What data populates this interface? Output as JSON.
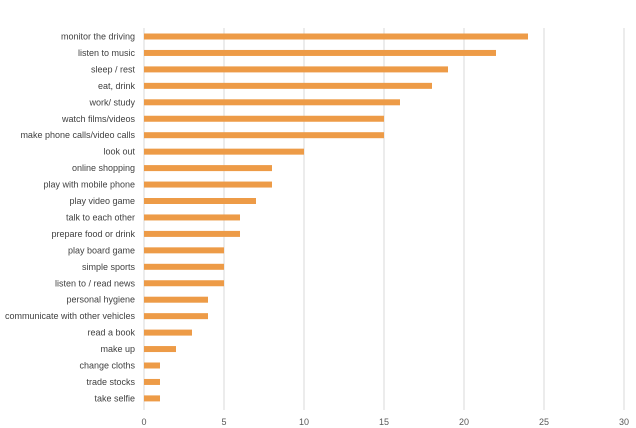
{
  "chart_data": {
    "type": "bar",
    "orientation": "horizontal",
    "title": "",
    "xlabel": "",
    "ylabel": "",
    "categories": [
      "monitor the driving",
      "listen to music",
      "sleep / rest",
      "eat, drink",
      "work/ study",
      "watch films/videos",
      "make phone calls/video calls",
      "look out",
      "online shopping",
      "play with mobile phone",
      "play video game",
      "talk to each other",
      "prepare food or drink",
      "play board game",
      "simple sports",
      "listen to / read news",
      "personal hygiene",
      "communicate with other vehicles",
      "read a book",
      "make up",
      "change cloths",
      "trade stocks",
      "take selfie"
    ],
    "values": [
      24,
      22,
      19,
      18,
      16,
      15,
      15,
      10,
      8,
      8,
      7,
      6,
      6,
      5,
      5,
      5,
      4,
      4,
      3,
      2,
      1,
      1,
      1
    ],
    "xlim": [
      0,
      30
    ],
    "xticks": [
      "0",
      "5",
      "10",
      "15",
      "20",
      "25",
      "30"
    ],
    "grid": "vertical",
    "legend": "none",
    "bar_color": "#ED9B47",
    "grid_color": "#D9D9D9",
    "label_color": "#404040"
  }
}
